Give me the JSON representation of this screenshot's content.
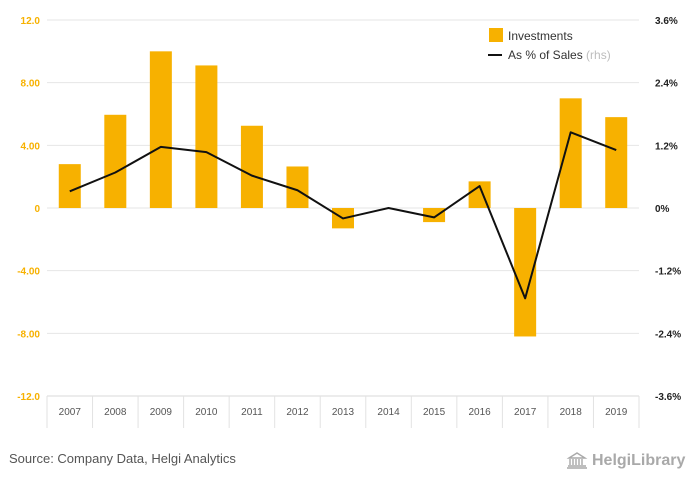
{
  "chart_data": {
    "type": "bar",
    "categories": [
      "2007",
      "2008",
      "2009",
      "2010",
      "2011",
      "2012",
      "2013",
      "2014",
      "2015",
      "2016",
      "2017",
      "2018",
      "2019"
    ],
    "series": [
      {
        "name": "Investments",
        "kind": "bar",
        "axis": "left",
        "color": "#F7B100",
        "values": [
          2.8,
          5.95,
          10.0,
          9.1,
          5.25,
          2.65,
          -1.3,
          0,
          -0.9,
          1.7,
          -8.2,
          7.0,
          5.8
        ]
      },
      {
        "name": "As % of Sales",
        "kind": "line",
        "axis": "right",
        "color": "#111111",
        "values": [
          0.32,
          0.68,
          1.17,
          1.07,
          0.62,
          0.34,
          -0.2,
          0.0,
          -0.18,
          0.42,
          -1.73,
          1.45,
          1.11
        ]
      }
    ],
    "left_axis": {
      "ylim": [
        -12,
        12
      ],
      "ticks": [
        "12.0",
        "8.00",
        "4.00",
        "0",
        "-4.00",
        "-8.00",
        "-12.0"
      ],
      "tick_color": "#F7B100"
    },
    "right_axis": {
      "ylim": [
        -3.6,
        3.6
      ],
      "ticks": [
        "3.6%",
        "2.4%",
        "1.2%",
        "0%",
        "-1.2%",
        "-2.4%",
        "-3.6%"
      ]
    },
    "legend": {
      "placement": "top-right",
      "bar_label": "Investments",
      "line_label": "As % of Sales",
      "line_suffix": "(rhs)"
    },
    "grid": true
  },
  "footer": {
    "source": "Source: Company Data, Helgi Analytics",
    "brand": "HelgiLibrary"
  }
}
